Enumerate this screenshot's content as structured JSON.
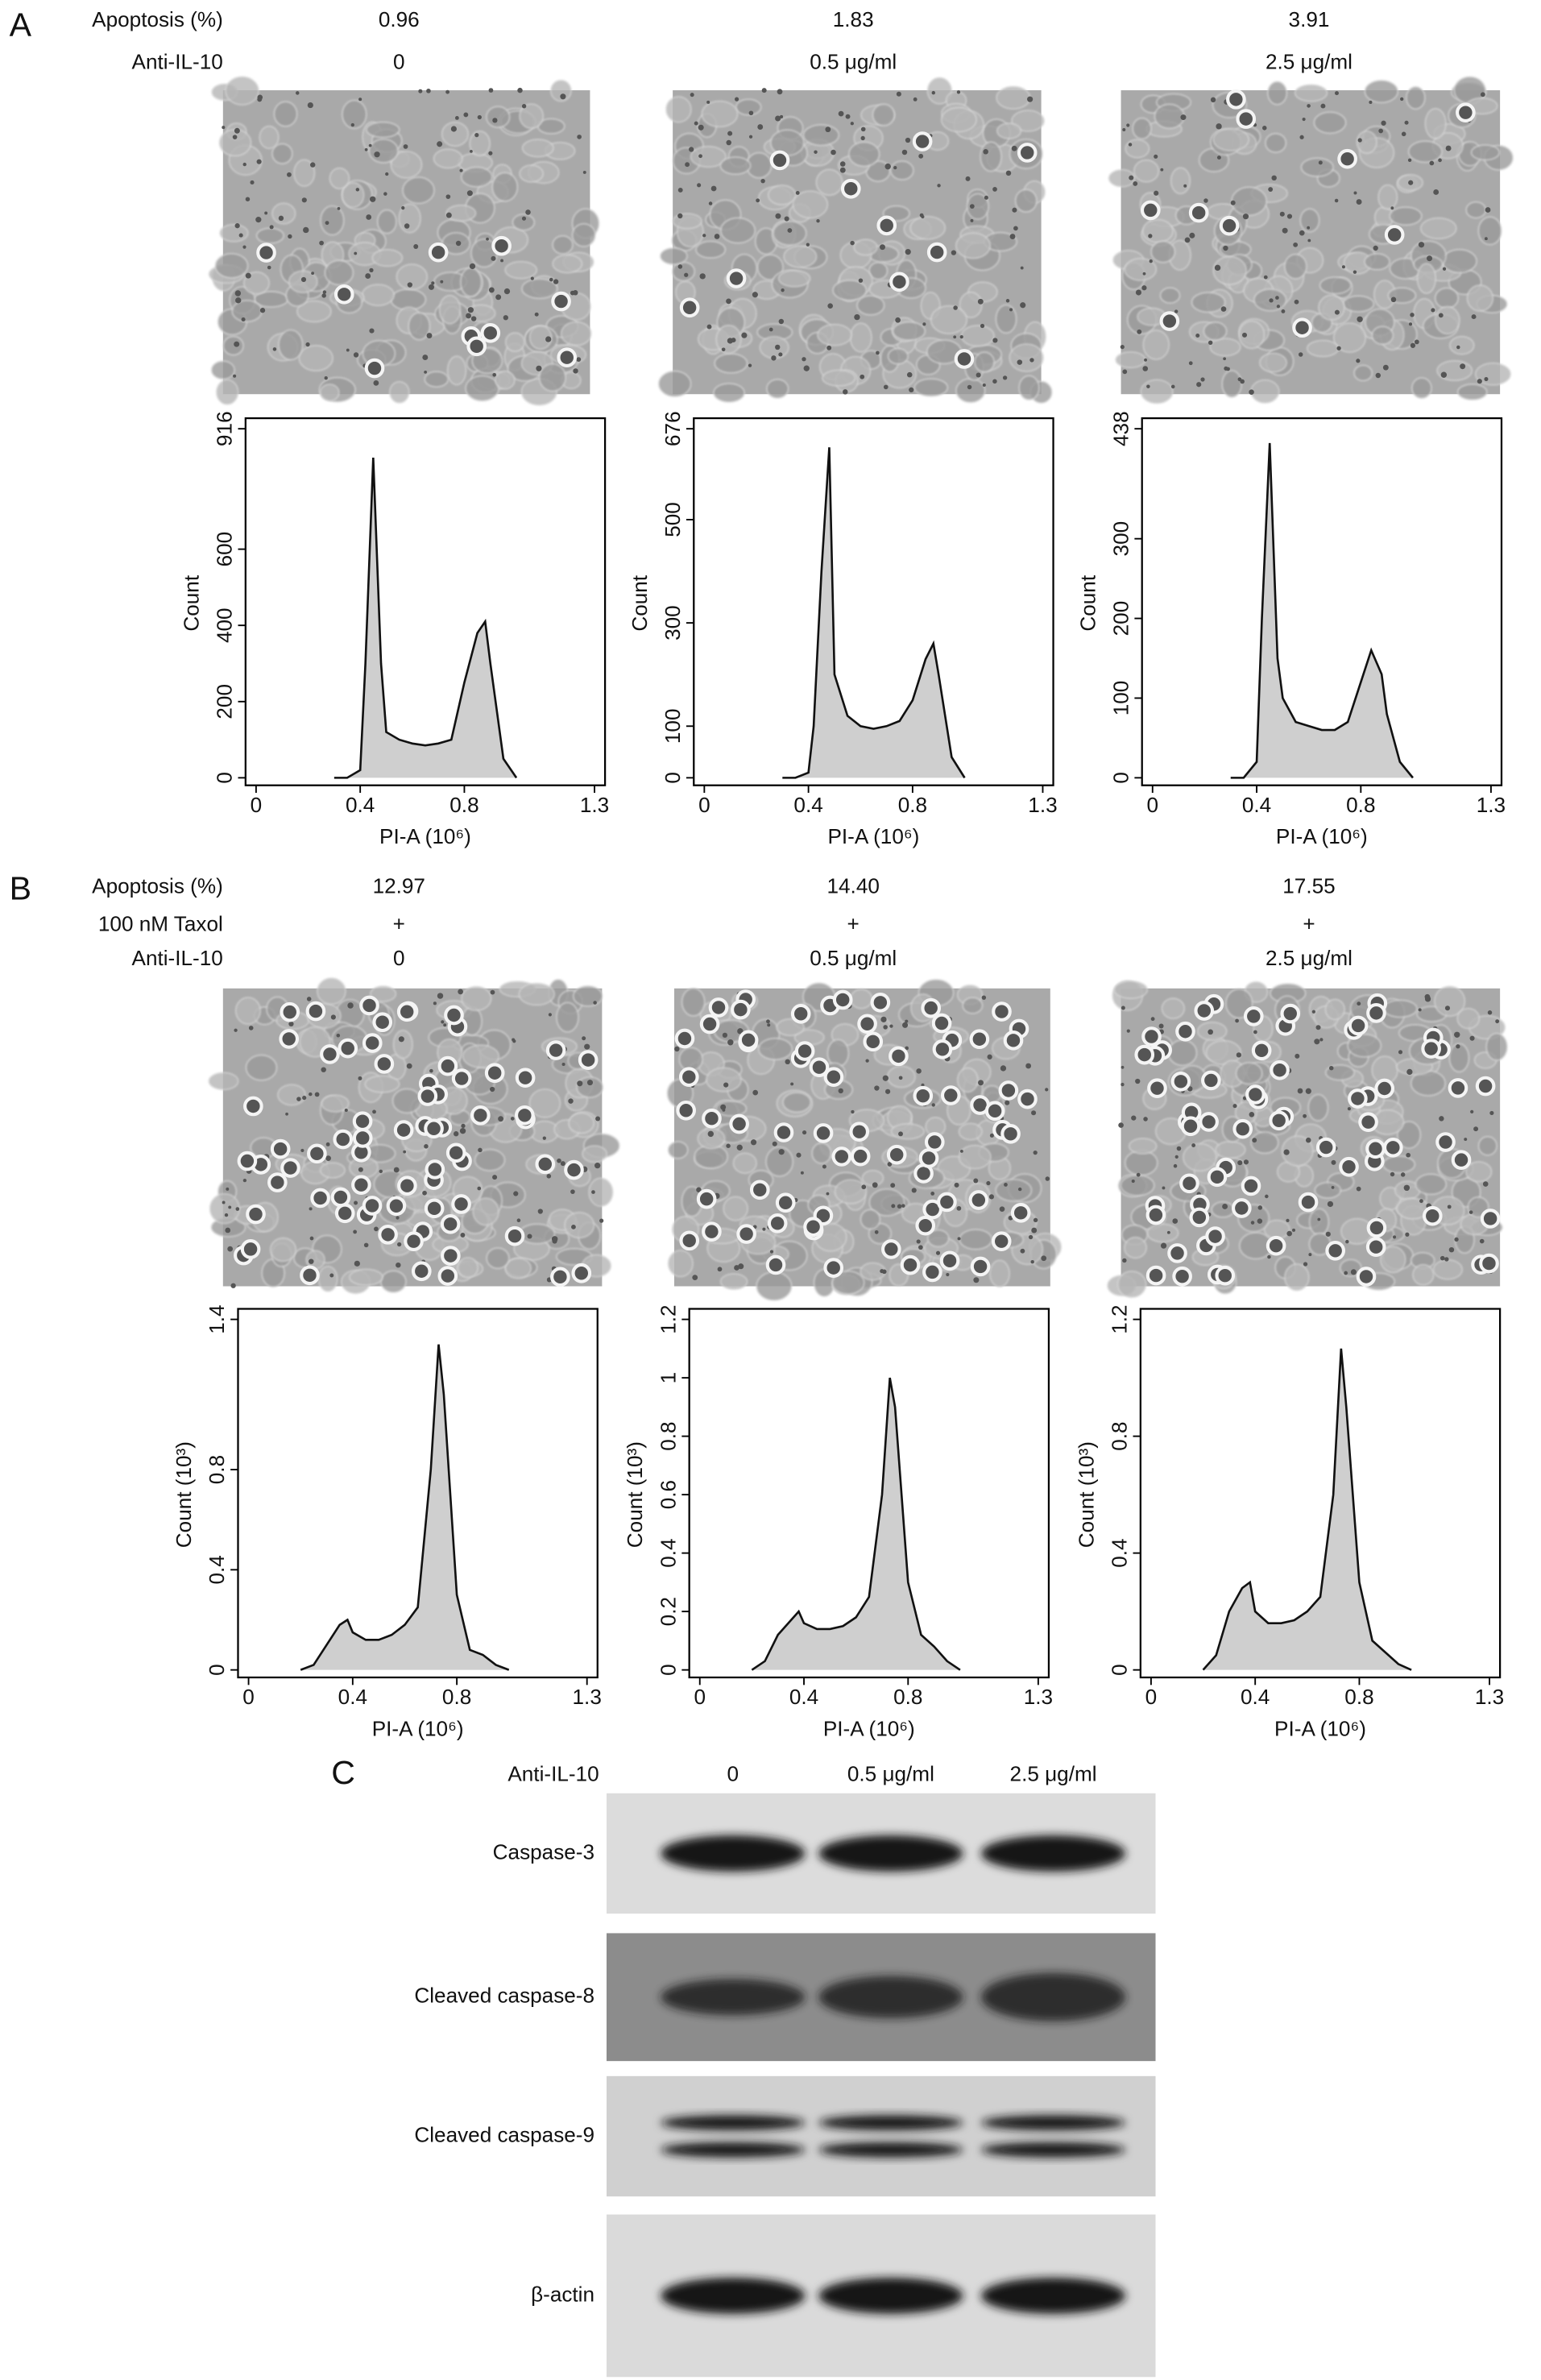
{
  "panel_a": {
    "label": "A",
    "row_labels": [
      "Apoptosis (%)",
      "Anti-IL-10"
    ],
    "columns": [
      [
        "0.96",
        "0"
      ],
      [
        "1.83",
        "0.5 μg/ml"
      ],
      [
        "3.91",
        "2.5 μg/ml"
      ]
    ],
    "charts": [
      {
        "type": "area",
        "ylabel": "Count",
        "xlabel": "PI-A (10⁶)",
        "xlim": [
          0,
          1.3
        ],
        "xticks": [
          0,
          0.4,
          0.8,
          1.3
        ],
        "ylim": [
          0,
          916
        ],
        "yticks": [
          0,
          200,
          400,
          600,
          916
        ],
        "x": [
          0.3,
          0.35,
          0.4,
          0.42,
          0.45,
          0.48,
          0.5,
          0.55,
          0.6,
          0.65,
          0.7,
          0.75,
          0.8,
          0.85,
          0.88,
          0.9,
          0.95,
          1.0
        ],
        "values": [
          0,
          0,
          20,
          300,
          840,
          300,
          120,
          100,
          90,
          85,
          90,
          100,
          250,
          380,
          410,
          300,
          50,
          0
        ]
      },
      {
        "type": "area",
        "ylabel": "Count",
        "xlabel": "PI-A (10⁶)",
        "xlim": [
          0,
          1.3
        ],
        "xticks": [
          0,
          0.4,
          0.8,
          1.3
        ],
        "ylim": [
          0,
          676
        ],
        "yticks": [
          0,
          100,
          300,
          500,
          676
        ],
        "x": [
          0.3,
          0.35,
          0.4,
          0.42,
          0.45,
          0.48,
          0.5,
          0.55,
          0.6,
          0.65,
          0.7,
          0.75,
          0.8,
          0.85,
          0.88,
          0.9,
          0.95,
          1.0
        ],
        "values": [
          0,
          0,
          10,
          100,
          400,
          640,
          200,
          120,
          100,
          95,
          100,
          110,
          150,
          230,
          260,
          200,
          40,
          0
        ]
      },
      {
        "type": "area",
        "ylabel": "Count",
        "xlabel": "PI-A (10⁶)",
        "xlim": [
          0,
          1.3
        ],
        "xticks": [
          0,
          0.4,
          0.8,
          1.3
        ],
        "ylim": [
          0,
          438
        ],
        "yticks": [
          0,
          100,
          200,
          300,
          438
        ],
        "x": [
          0.3,
          0.35,
          0.4,
          0.42,
          0.45,
          0.48,
          0.5,
          0.55,
          0.6,
          0.65,
          0.7,
          0.75,
          0.8,
          0.84,
          0.88,
          0.9,
          0.95,
          1.0
        ],
        "values": [
          0,
          0,
          20,
          200,
          420,
          150,
          100,
          70,
          65,
          60,
          60,
          70,
          120,
          160,
          130,
          80,
          20,
          0
        ]
      }
    ]
  },
  "panel_b": {
    "label": "B",
    "row_labels": [
      "Apoptosis (%)",
      "100 nM Taxol",
      "Anti-IL-10"
    ],
    "columns": [
      [
        "12.97",
        "+",
        "0"
      ],
      [
        "14.40",
        "+",
        "0.5 μg/ml"
      ],
      [
        "17.55",
        "+",
        "2.5 μg/ml"
      ]
    ],
    "charts": [
      {
        "type": "area",
        "ylabel": "Count (10³)",
        "xlabel": "PI-A (10⁶)",
        "xlim": [
          0,
          1.3
        ],
        "xticks": [
          0,
          0.4,
          0.8,
          1.3
        ],
        "ylim": [
          0,
          1.4
        ],
        "yticks": [
          0,
          0.4,
          0.8,
          1.4
        ],
        "x": [
          0.2,
          0.25,
          0.3,
          0.35,
          0.38,
          0.4,
          0.45,
          0.5,
          0.55,
          0.6,
          0.65,
          0.7,
          0.73,
          0.75,
          0.8,
          0.85,
          0.9,
          0.95,
          1.0
        ],
        "values": [
          0,
          0.02,
          0.1,
          0.18,
          0.2,
          0.15,
          0.12,
          0.12,
          0.14,
          0.18,
          0.25,
          0.8,
          1.3,
          1.1,
          0.3,
          0.08,
          0.06,
          0.02,
          0
        ]
      },
      {
        "type": "area",
        "ylabel": "Count (10³)",
        "xlabel": "PI-A (10⁶)",
        "xlim": [
          0,
          1.3
        ],
        "xticks": [
          0,
          0.4,
          0.8,
          1.3
        ],
        "ylim": [
          0,
          1.2
        ],
        "yticks": [
          0,
          0.2,
          0.4,
          0.6,
          0.8,
          1,
          1.2
        ],
        "x": [
          0.2,
          0.25,
          0.3,
          0.35,
          0.38,
          0.4,
          0.45,
          0.5,
          0.55,
          0.6,
          0.65,
          0.7,
          0.73,
          0.75,
          0.8,
          0.85,
          0.9,
          0.95,
          1.0
        ],
        "values": [
          0,
          0.03,
          0.12,
          0.17,
          0.2,
          0.16,
          0.14,
          0.14,
          0.15,
          0.18,
          0.25,
          0.6,
          1.0,
          0.9,
          0.3,
          0.12,
          0.08,
          0.03,
          0
        ]
      },
      {
        "type": "area",
        "ylabel": "Count (10³)",
        "xlabel": "PI-A (10⁶)",
        "xlim": [
          0,
          1.3
        ],
        "xticks": [
          0,
          0.4,
          0.8,
          1.3
        ],
        "ylim": [
          0,
          1.2
        ],
        "yticks": [
          0,
          0.4,
          0.8,
          1.2
        ],
        "x": [
          0.2,
          0.25,
          0.3,
          0.35,
          0.38,
          0.4,
          0.45,
          0.5,
          0.55,
          0.6,
          0.65,
          0.7,
          0.73,
          0.75,
          0.8,
          0.85,
          0.9,
          0.95,
          1.0
        ],
        "values": [
          0,
          0.05,
          0.2,
          0.28,
          0.3,
          0.2,
          0.16,
          0.16,
          0.17,
          0.2,
          0.25,
          0.6,
          1.1,
          0.9,
          0.3,
          0.1,
          0.06,
          0.02,
          0
        ]
      }
    ]
  },
  "panel_c": {
    "label": "C",
    "column_header": "Anti-IL-10",
    "columns": [
      "0",
      "0.5 μg/ml",
      "2.5 μg/ml"
    ],
    "rows": [
      "Caspase-3",
      "Cleaved caspase-8",
      "Cleaved caspase-9",
      "β-actin"
    ]
  }
}
